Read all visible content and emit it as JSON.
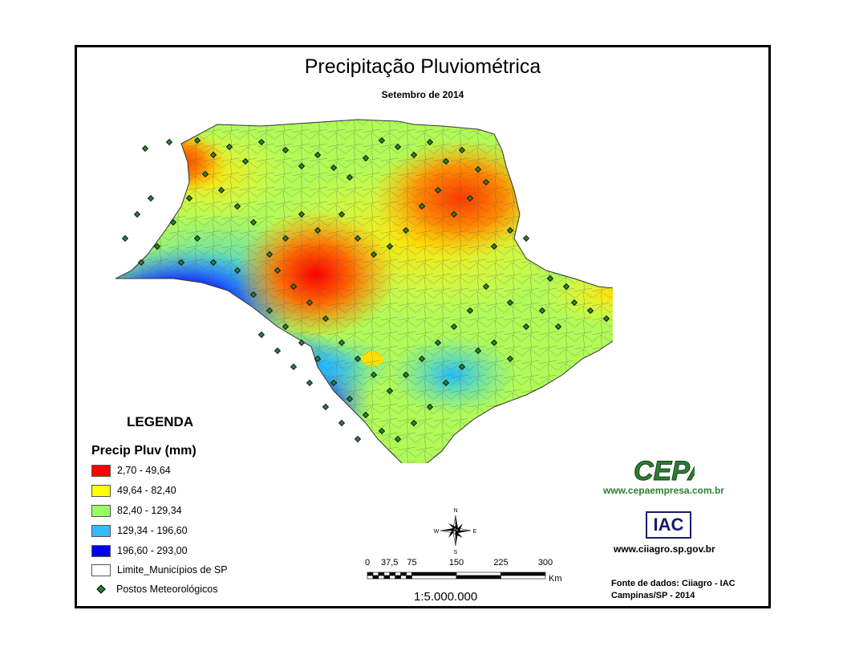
{
  "header": {
    "title": "Precipitação Pluviométrica",
    "subtitle": "Setembro de 2014"
  },
  "legend": {
    "title": "LEGENDA",
    "subtitle": "Precip Pluv (mm)",
    "classes": [
      {
        "label": "2,70 - 49,64",
        "color": "#ff0000"
      },
      {
        "label": "49,64 - 82,40",
        "color": "#ffff00"
      },
      {
        "label": "82,40 - 129,34",
        "color": "#99ff66"
      },
      {
        "label": "129,34 - 196,60",
        "color": "#33bbff"
      },
      {
        "label": "196,60 - 293,00",
        "color": "#0000ee"
      }
    ],
    "boundary_label": "Limite_Municípios de SP",
    "stations_label": "Postos Meteorológicos"
  },
  "compass": {
    "n": "N",
    "s": "S",
    "e": "E",
    "w": "W"
  },
  "scale": {
    "ticks": [
      "0",
      "37,5",
      "75",
      "150",
      "225",
      "300"
    ],
    "tick_values_km": [
      0,
      37.5,
      75,
      150,
      225,
      300
    ],
    "unit": "Km",
    "ratio": "1:5.000.000"
  },
  "logos": {
    "cepa_text": "CEPA",
    "cepa_url": "www.cepaempresa.com.br",
    "iac_text": "IAC",
    "iac_url": "www.ciiagro.sp.gov.br"
  },
  "source": {
    "line1": "Fonte de dados: Ciiagro - IAC",
    "line2": "Campinas/SP - 2014"
  }
}
